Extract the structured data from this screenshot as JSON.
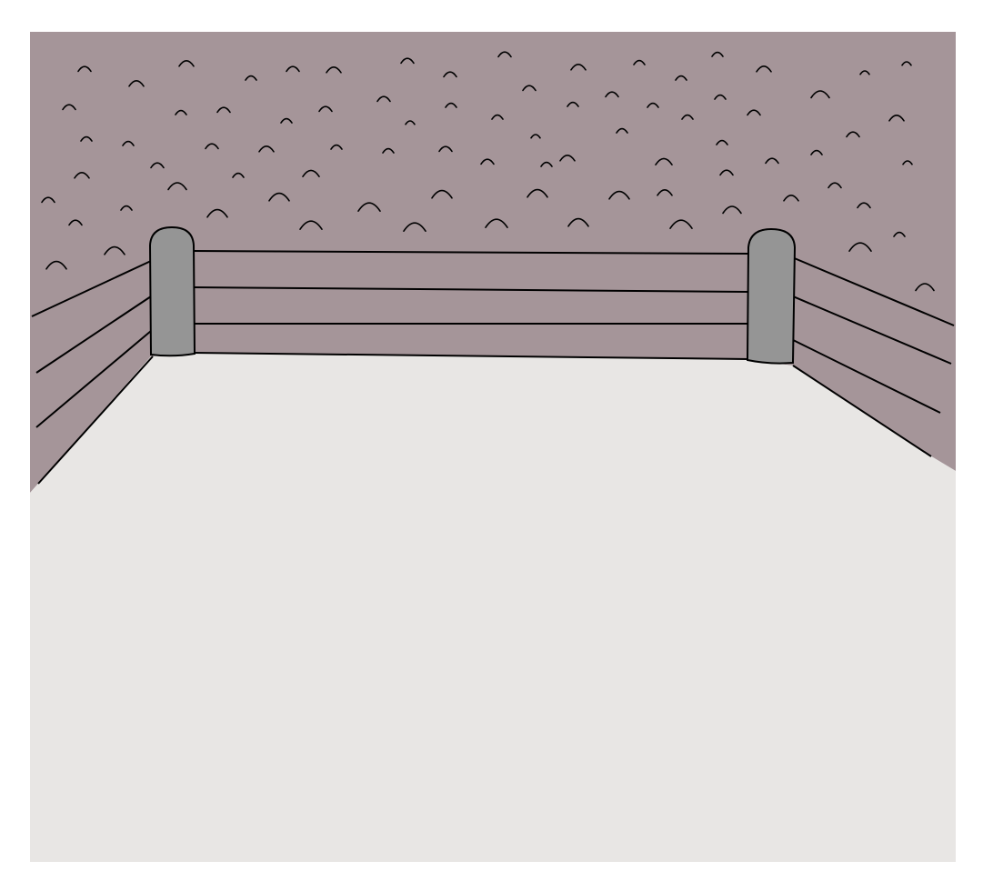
{
  "colors": {
    "page_background": "#ffffff",
    "crowd_wall": "#a59599",
    "ring_canvas": "#e8e6e4",
    "corner_post": "#959595",
    "outline": "#000000"
  }
}
